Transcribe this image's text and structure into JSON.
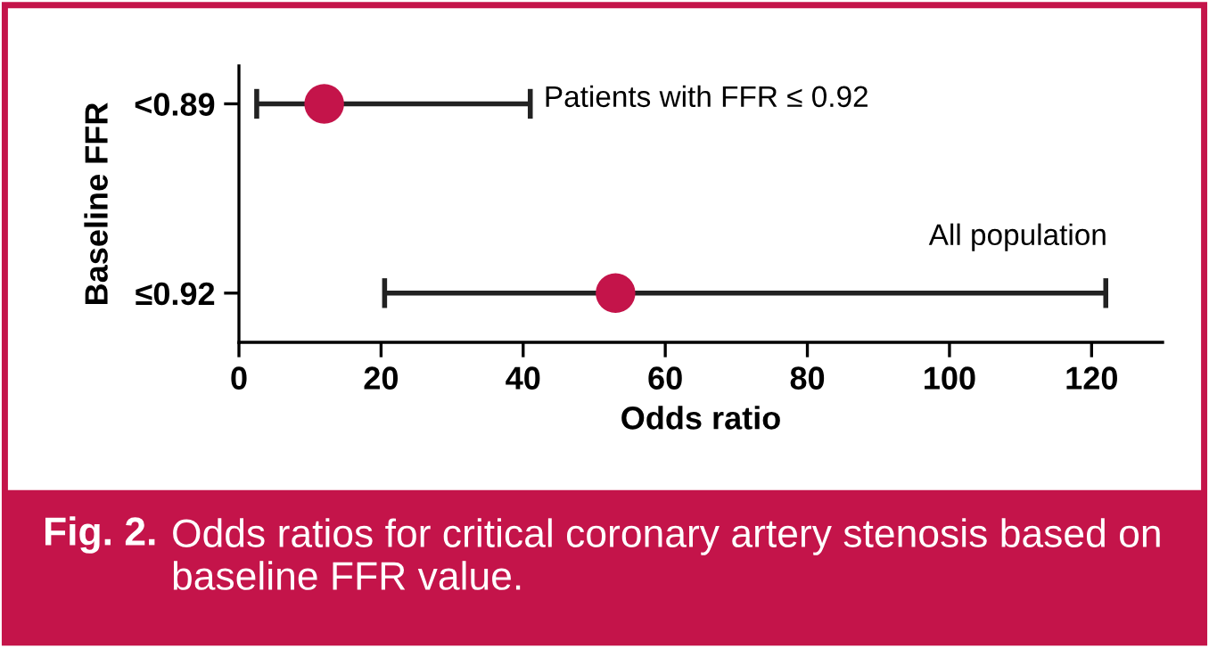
{
  "chart_data": {
    "type": "scatter",
    "orientation": "horizontal",
    "categories": [
      "<0.89",
      "≤0.92"
    ],
    "values": [
      12,
      53
    ],
    "errors": [
      [
        2.5,
        41
      ],
      [
        20.5,
        122
      ]
    ],
    "color": "#c4144a",
    "marker": "circle",
    "xlim": [
      0,
      130
    ],
    "xticks": [
      0,
      20,
      40,
      60,
      80,
      100,
      120
    ],
    "xlabel": "Odds ratio",
    "ylabel": "Baseline FFR",
    "grid": false,
    "legend": false,
    "annotations": [
      "Patients with FFR ≤ 0.92",
      "All population",
      "Fig. 2.",
      "Odds ratios for critical coronary artery stenosis based on baseline FFR value."
    ]
  }
}
